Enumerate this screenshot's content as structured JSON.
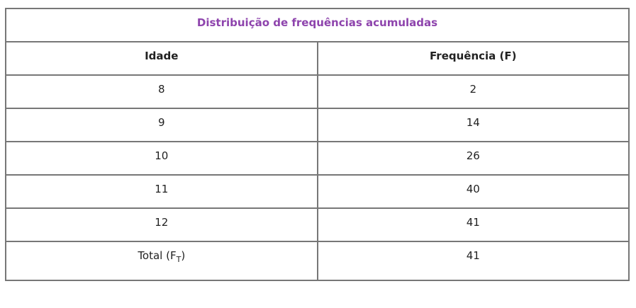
{
  "title": "Distribuição de frequências acumuladas",
  "title_color": "#8e44ad",
  "columns": [
    "Idade",
    "Frequência (F)"
  ],
  "rows": [
    [
      "8",
      "2"
    ],
    [
      "9",
      "14"
    ],
    [
      "10",
      "26"
    ],
    [
      "11",
      "40"
    ],
    [
      "12",
      "41"
    ]
  ],
  "total": {
    "label": "Total (F",
    "label_sub": "T",
    "label_end": ")",
    "value": "41"
  }
}
